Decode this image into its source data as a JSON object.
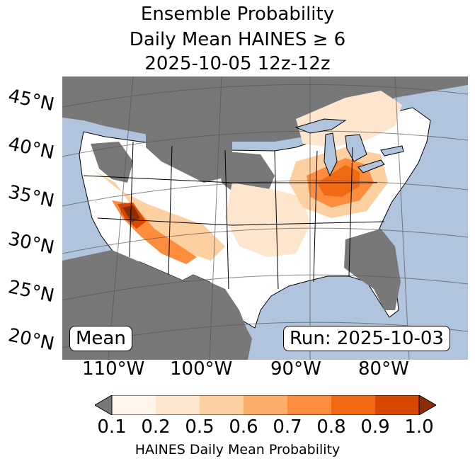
{
  "title": {
    "line1": "Ensemble Probability",
    "line2": "Daily Mean HAINES ≥ 6",
    "line3": "2025-10-05 12z-12z"
  },
  "map": {
    "ocean_color": "#b0c4de",
    "land_color": "#ffffff",
    "missing_color": "#787878",
    "lat_labels": [
      "45°N",
      "40°N",
      "35°N",
      "30°N",
      "25°N",
      "20°N"
    ],
    "lon_labels": [
      "110°W",
      "100°W",
      "90°W",
      "80°W"
    ]
  },
  "stat_label": "Mean",
  "run_label": "Run: 2025-10-03",
  "colorbar": {
    "label": "HAINES Daily Mean Probability",
    "ticks": [
      "0.1",
      "0.2",
      "0.5",
      "0.6",
      "0.7",
      "0.8",
      "0.9",
      "1.0"
    ],
    "colors": [
      "#fff5eb",
      "#fee6ce",
      "#fdd0a2",
      "#fdae6b",
      "#fd8d3c",
      "#f16913",
      "#d94801"
    ],
    "under_color": "#787878",
    "over_color": "#8c2d04"
  }
}
